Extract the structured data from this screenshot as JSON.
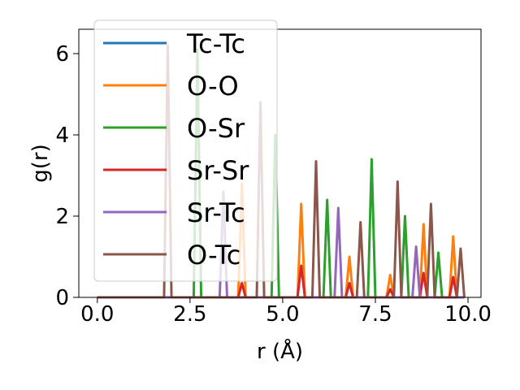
{
  "chart_data": {
    "type": "line",
    "xlabel": "r (Å)",
    "ylabel": "g(r)",
    "xlim": [
      -0.5,
      10.35
    ],
    "ylim": [
      0,
      6.6
    ],
    "x_ticks": [
      0.0,
      2.5,
      5.0,
      7.5,
      10.0
    ],
    "x_tick_labels": [
      "0.0",
      "2.5",
      "5.0",
      "7.5",
      "10.0"
    ],
    "y_ticks": [
      0,
      2,
      4,
      6
    ],
    "y_tick_labels": [
      "0",
      "2",
      "4",
      "6"
    ],
    "grid": false,
    "legend_position": "upper-left",
    "peak_half_width": 0.1,
    "x_max": 9.9,
    "series": [
      {
        "name": "Tc-Tc",
        "color": "#1f77b4",
        "peaks": []
      },
      {
        "name": "O-O",
        "color": "#ff7f0e",
        "peaks": [
          [
            3.9,
            2.8
          ],
          [
            5.5,
            2.3
          ],
          [
            6.8,
            1.0
          ],
          [
            7.9,
            0.55
          ],
          [
            8.8,
            1.8
          ],
          [
            9.6,
            1.5
          ]
        ]
      },
      {
        "name": "O-Sr",
        "color": "#2ca02c",
        "peaks": [
          [
            2.7,
            6.1
          ],
          [
            4.8,
            4.0
          ],
          [
            6.2,
            2.4
          ],
          [
            7.4,
            3.4
          ],
          [
            8.3,
            2.0
          ],
          [
            9.2,
            1.1
          ]
        ]
      },
      {
        "name": "Sr-Sr",
        "color": "#d62728",
        "peaks": [
          [
            3.9,
            0.35
          ],
          [
            5.5,
            0.78
          ],
          [
            6.8,
            0.35
          ],
          [
            7.9,
            0.2
          ],
          [
            8.8,
            0.6
          ],
          [
            9.6,
            0.5
          ]
        ]
      },
      {
        "name": "Sr-Tc",
        "color": "#9467bd",
        "peaks": [
          [
            3.4,
            2.6
          ],
          [
            6.5,
            2.2
          ],
          [
            8.6,
            1.25
          ]
        ]
      },
      {
        "name": "O-Tc",
        "color": "#8c564b",
        "peaks": [
          [
            1.9,
            6.2
          ],
          [
            4.4,
            4.8
          ],
          [
            5.9,
            3.35
          ],
          [
            7.1,
            1.85
          ],
          [
            8.1,
            2.85
          ],
          [
            9.0,
            2.3
          ],
          [
            9.8,
            1.2
          ]
        ]
      }
    ]
  }
}
